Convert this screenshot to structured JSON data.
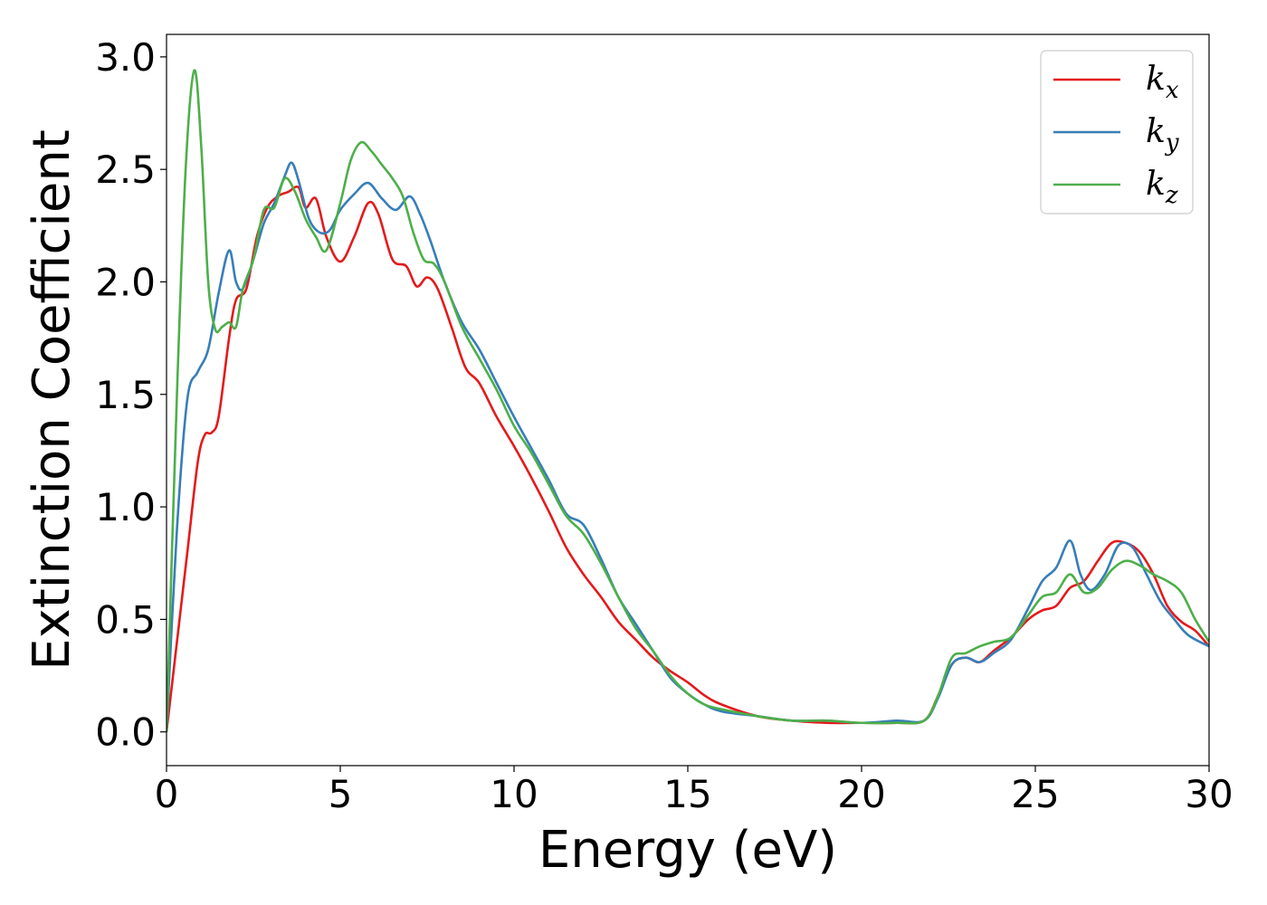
{
  "chart_data": {
    "type": "line",
    "title": "",
    "xlabel": "Energy (eV)",
    "ylabel": "Extinction Coefficient",
    "xlim": [
      0,
      30
    ],
    "ylim": [
      -0.15,
      3.1
    ],
    "xticks": [
      0,
      5,
      10,
      15,
      20,
      25,
      30
    ],
    "yticks": [
      0.0,
      0.5,
      1.0,
      1.5,
      2.0,
      2.5,
      3.0
    ],
    "grid": false,
    "legend_placement": "top-right",
    "series": [
      {
        "name": "kx",
        "label_main": "k",
        "label_sub": "x",
        "color": "#e41a1c",
        "x": [
          0,
          0.3,
          0.6,
          0.9,
          1.1,
          1.3,
          1.5,
          1.8,
          2.0,
          2.3,
          2.6,
          2.9,
          3.2,
          3.5,
          3.8,
          4.0,
          4.3,
          4.6,
          5.0,
          5.4,
          5.8,
          6.1,
          6.5,
          6.9,
          7.2,
          7.5,
          7.8,
          8.2,
          8.6,
          9.0,
          9.5,
          10.0,
          10.5,
          11.0,
          11.5,
          12.0,
          12.5,
          13.0,
          13.5,
          14.0,
          14.5,
          15.0,
          15.5,
          16.0,
          17.0,
          18.0,
          19.0,
          20.0,
          21.0,
          21.8,
          22.2,
          22.6,
          23.0,
          23.4,
          23.8,
          24.3,
          24.8,
          25.2,
          25.6,
          26.0,
          26.4,
          26.8,
          27.2,
          27.6,
          28.0,
          28.4,
          28.8,
          29.2,
          29.6,
          30.0
        ],
        "y": [
          0.0,
          0.4,
          0.8,
          1.2,
          1.32,
          1.33,
          1.4,
          1.75,
          1.92,
          1.97,
          2.2,
          2.33,
          2.38,
          2.4,
          2.42,
          2.33,
          2.37,
          2.2,
          2.09,
          2.2,
          2.35,
          2.3,
          2.1,
          2.07,
          1.98,
          2.02,
          1.97,
          1.8,
          1.62,
          1.55,
          1.4,
          1.27,
          1.13,
          0.98,
          0.82,
          0.7,
          0.6,
          0.49,
          0.41,
          0.33,
          0.27,
          0.22,
          0.16,
          0.12,
          0.07,
          0.05,
          0.04,
          0.04,
          0.04,
          0.05,
          0.16,
          0.3,
          0.33,
          0.31,
          0.36,
          0.42,
          0.5,
          0.54,
          0.56,
          0.64,
          0.67,
          0.76,
          0.84,
          0.84,
          0.8,
          0.7,
          0.56,
          0.49,
          0.45,
          0.38
        ]
      },
      {
        "name": "ky",
        "label_main": "k",
        "label_sub": "y",
        "color": "#377eb8",
        "x": [
          0,
          0.3,
          0.6,
          0.9,
          1.2,
          1.5,
          1.8,
          2.0,
          2.2,
          2.5,
          2.8,
          3.1,
          3.4,
          3.6,
          3.8,
          4.1,
          4.4,
          4.7,
          5.0,
          5.4,
          5.8,
          6.2,
          6.6,
          7.0,
          7.3,
          7.6,
          8.0,
          8.5,
          9.0,
          9.5,
          10.0,
          10.5,
          11.0,
          11.5,
          12.0,
          12.5,
          13.0,
          13.5,
          14.0,
          14.5,
          15.0,
          15.5,
          16.0,
          17.0,
          18.0,
          19.0,
          20.0,
          21.0,
          21.8,
          22.2,
          22.6,
          23.0,
          23.4,
          23.8,
          24.3,
          24.8,
          25.2,
          25.6,
          26.0,
          26.3,
          26.6,
          27.0,
          27.4,
          27.8,
          28.2,
          28.6,
          29.0,
          29.4,
          30.0
        ],
        "y": [
          0.0,
          0.9,
          1.48,
          1.6,
          1.7,
          1.95,
          2.14,
          2.0,
          1.97,
          2.1,
          2.26,
          2.35,
          2.47,
          2.53,
          2.45,
          2.28,
          2.22,
          2.23,
          2.32,
          2.39,
          2.44,
          2.37,
          2.32,
          2.38,
          2.3,
          2.18,
          2.0,
          1.82,
          1.7,
          1.55,
          1.4,
          1.26,
          1.12,
          0.97,
          0.92,
          0.77,
          0.6,
          0.48,
          0.36,
          0.24,
          0.17,
          0.12,
          0.09,
          0.07,
          0.05,
          0.05,
          0.04,
          0.05,
          0.05,
          0.15,
          0.3,
          0.33,
          0.31,
          0.35,
          0.41,
          0.55,
          0.67,
          0.73,
          0.85,
          0.7,
          0.63,
          0.7,
          0.83,
          0.82,
          0.7,
          0.58,
          0.5,
          0.43,
          0.38
        ]
      },
      {
        "name": "kz",
        "label_main": "k",
        "label_sub": "z",
        "color": "#4daf4a",
        "x": [
          0,
          0.3,
          0.55,
          0.8,
          1.0,
          1.2,
          1.4,
          1.6,
          1.8,
          2.0,
          2.2,
          2.5,
          2.8,
          3.1,
          3.4,
          3.7,
          4.0,
          4.3,
          4.6,
          5.0,
          5.3,
          5.6,
          5.9,
          6.2,
          6.5,
          6.8,
          7.1,
          7.4,
          7.7,
          8.0,
          8.5,
          9.0,
          9.5,
          10.0,
          10.5,
          11.0,
          11.5,
          12.0,
          12.5,
          13.0,
          13.5,
          14.0,
          14.5,
          15.0,
          15.5,
          16.0,
          17.0,
          18.0,
          19.0,
          20.0,
          21.0,
          21.8,
          22.2,
          22.6,
          23.0,
          23.4,
          23.8,
          24.3,
          24.8,
          25.2,
          25.6,
          26.0,
          26.4,
          26.8,
          27.2,
          27.6,
          28.0,
          28.4,
          28.8,
          29.2,
          29.6,
          30.0
        ],
        "y": [
          0.0,
          1.5,
          2.5,
          2.94,
          2.6,
          2.0,
          1.79,
          1.8,
          1.82,
          1.8,
          1.97,
          2.1,
          2.32,
          2.33,
          2.46,
          2.4,
          2.28,
          2.2,
          2.14,
          2.35,
          2.54,
          2.62,
          2.58,
          2.52,
          2.46,
          2.38,
          2.22,
          2.1,
          2.08,
          2.0,
          1.8,
          1.66,
          1.52,
          1.36,
          1.24,
          1.1,
          0.96,
          0.88,
          0.75,
          0.6,
          0.46,
          0.36,
          0.25,
          0.17,
          0.12,
          0.1,
          0.07,
          0.05,
          0.05,
          0.04,
          0.04,
          0.05,
          0.16,
          0.33,
          0.35,
          0.38,
          0.4,
          0.42,
          0.52,
          0.6,
          0.62,
          0.7,
          0.62,
          0.64,
          0.72,
          0.76,
          0.74,
          0.7,
          0.67,
          0.62,
          0.5,
          0.4
        ]
      }
    ]
  }
}
